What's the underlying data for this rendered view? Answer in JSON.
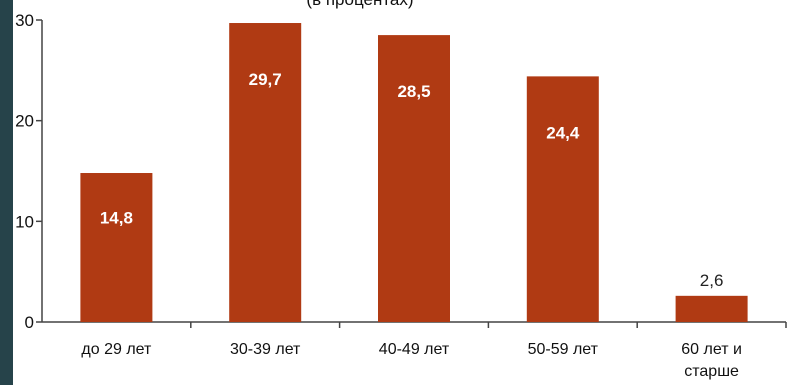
{
  "chart_data": {
    "type": "bar",
    "title": "(в процентах)",
    "categories": [
      "до 29 лет",
      "30-39 лет",
      "40-49 лет",
      "50-59 лет",
      "60 лет и старше"
    ],
    "category_lines": [
      [
        "до 29 лет"
      ],
      [
        "30-39 лет"
      ],
      [
        "40-49 лет"
      ],
      [
        "50-59 лет"
      ],
      [
        "60 лет и",
        "старше"
      ]
    ],
    "values": [
      14.8,
      29.7,
      28.5,
      24.4,
      2.6
    ],
    "value_labels": [
      "14,8",
      "29,7",
      "28,5",
      "24,4",
      "2,6"
    ],
    "yticks": [
      0,
      10,
      20,
      30
    ],
    "ylim": [
      0,
      30
    ],
    "grid": false,
    "xlabel": "",
    "ylabel": "",
    "colors": {
      "bar": "#b03a13",
      "inside_label": "#ffffff",
      "outside_label": "#222222",
      "axis": "#444444",
      "tick_text": "#111111",
      "left_strip": "#26434a"
    }
  }
}
